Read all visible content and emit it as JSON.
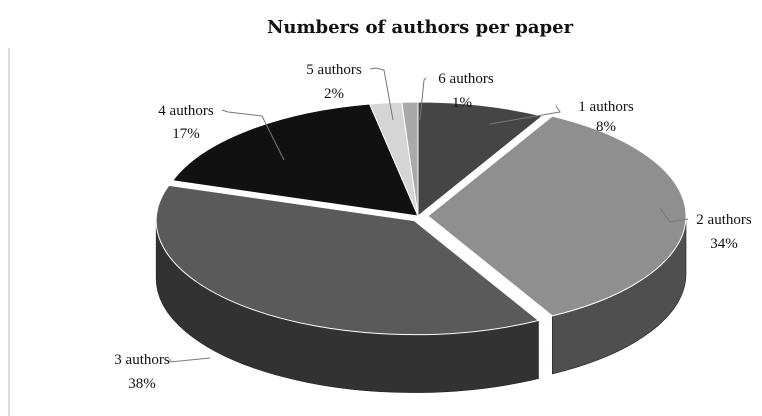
{
  "chart_data": {
    "type": "pie",
    "title": "Numbers of authors per paper",
    "categories": [
      "1 authors",
      "2 authors",
      "3 authors",
      "4 authors",
      "5 authors",
      "6 authors"
    ],
    "values": [
      8,
      34,
      38,
      17,
      2,
      1
    ],
    "value_labels": [
      "8%",
      "34%",
      "38%",
      "17%",
      "2%",
      "1%"
    ],
    "colors": [
      "#454545",
      "#8f8f8f",
      "#5a5a5a",
      "#111111",
      "#d5d5d5",
      "#a9a9a9"
    ],
    "style": "3d-exploded"
  }
}
